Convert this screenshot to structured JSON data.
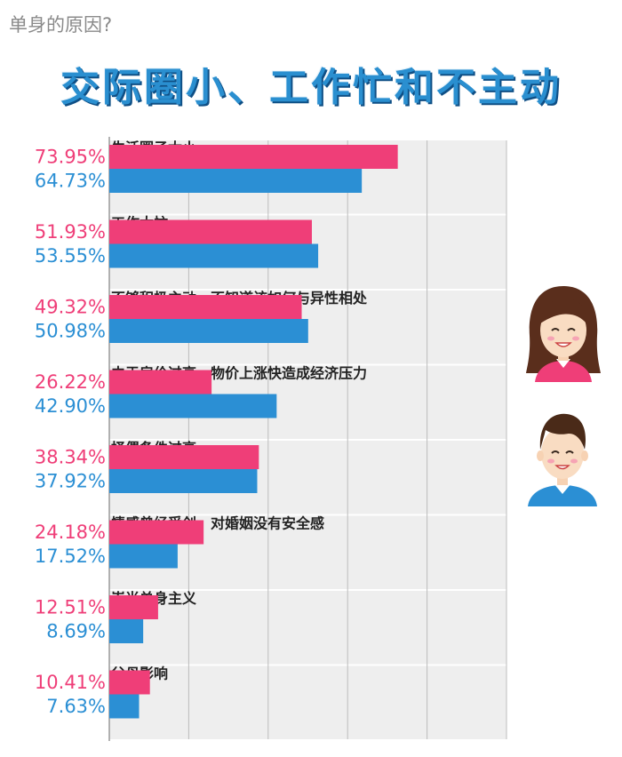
{
  "header": {
    "subtitle": "单身的原因?",
    "title": "交际圈小、工作忙和不主动"
  },
  "colors": {
    "female": "#ef3e78",
    "male": "#2b8fd4",
    "female_text": "#ef3e78",
    "male_text": "#2b8fd4",
    "band": "#eeeeee"
  },
  "legend": {
    "female_icon": "female-avatar-icon",
    "male_icon": "male-avatar-icon"
  },
  "chart_data": {
    "type": "bar",
    "orientation": "horizontal",
    "categories": [
      "生活圈子太小",
      "工作太忙",
      "不够积极主动，不知道该如何与异性相处",
      "由于房价过高，物价上涨快造成经济压力",
      "择偶条件过高",
      "情感曾经受创，对婚姻没有安全感",
      "崇尚单身主义",
      "父母影响"
    ],
    "series": [
      {
        "values": [
          73.95,
          51.93,
          49.32,
          26.22,
          38.34,
          24.18,
          12.51,
          10.41
        ]
      },
      {
        "values": [
          64.73,
          53.55,
          50.98,
          42.9,
          37.92,
          17.52,
          8.69,
          7.63
        ]
      }
    ],
    "labels": [
      [
        "73.95%",
        "51.93%",
        "49.32%",
        "26.22%",
        "38.34%",
        "24.18%",
        "12.51%",
        "10.41%"
      ],
      [
        "64.73%",
        "53.55%",
        "50.98%",
        "42.90%",
        "37.92%",
        "17.52%",
        "8.69%",
        "7.63%"
      ]
    ],
    "grid": true,
    "legend_position": "right"
  }
}
